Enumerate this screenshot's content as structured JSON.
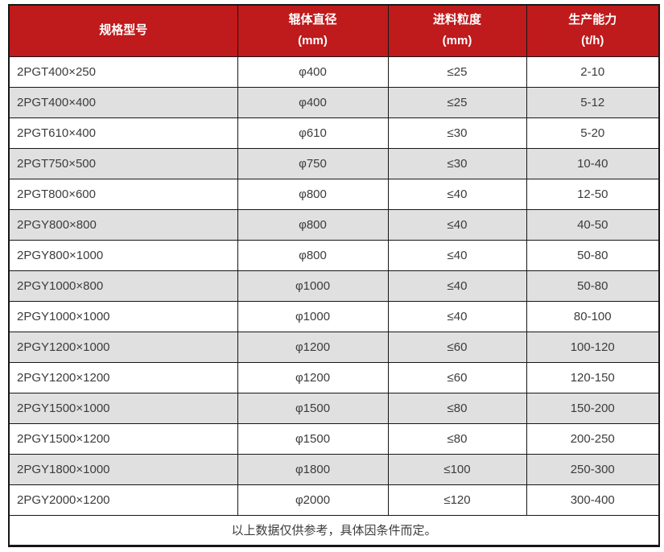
{
  "chart_data": {
    "type": "table",
    "columns": [
      {
        "label": "规格型号",
        "unit": ""
      },
      {
        "label": "辊体直径",
        "unit": "(mm)"
      },
      {
        "label": "进料粒度",
        "unit": "(mm)"
      },
      {
        "label": "生产能力",
        "unit": "(t/h)"
      }
    ],
    "rows": [
      [
        "2PGT400×250",
        "φ400",
        "≤25",
        "2-10"
      ],
      [
        "2PGT400×400",
        "φ400",
        "≤25",
        "5-12"
      ],
      [
        "2PGT610×400",
        "φ610",
        "≤30",
        "5-20"
      ],
      [
        "2PGT750×500",
        "φ750",
        "≤30",
        "10-40"
      ],
      [
        "2PGT800×600",
        "φ800",
        "≤40",
        "12-50"
      ],
      [
        "2PGY800×800",
        "φ800",
        "≤40",
        "40-50"
      ],
      [
        "2PGY800×1000",
        "φ800",
        "≤40",
        "50-80"
      ],
      [
        "2PGY1000×800",
        "φ1000",
        "≤40",
        "50-80"
      ],
      [
        "2PGY1000×1000",
        "φ1000",
        "≤40",
        "80-100"
      ],
      [
        "2PGY1200×1000",
        "φ1200",
        "≤60",
        "100-120"
      ],
      [
        "2PGY1200×1200",
        "φ1200",
        "≤60",
        "120-150"
      ],
      [
        "2PGY1500×1000",
        "φ1500",
        "≤80",
        "150-200"
      ],
      [
        "2PGY1500×1200",
        "φ1500",
        "≤80",
        "200-250"
      ],
      [
        "2PGY1800×1000",
        "φ1800",
        "≤100",
        "250-300"
      ],
      [
        "2PGY2000×1200",
        "φ2000",
        "≤120",
        "300-400"
      ]
    ],
    "footnote": "以上数据仅供参考，具体因条件而定。"
  },
  "colors": {
    "header_bg": "#bf1a1c",
    "header_text": "#ffffff",
    "row_bg": "#ffffff",
    "alt_row_bg": "#e0e0e0",
    "border": "#161616",
    "body_text": "#3c3c3c"
  }
}
